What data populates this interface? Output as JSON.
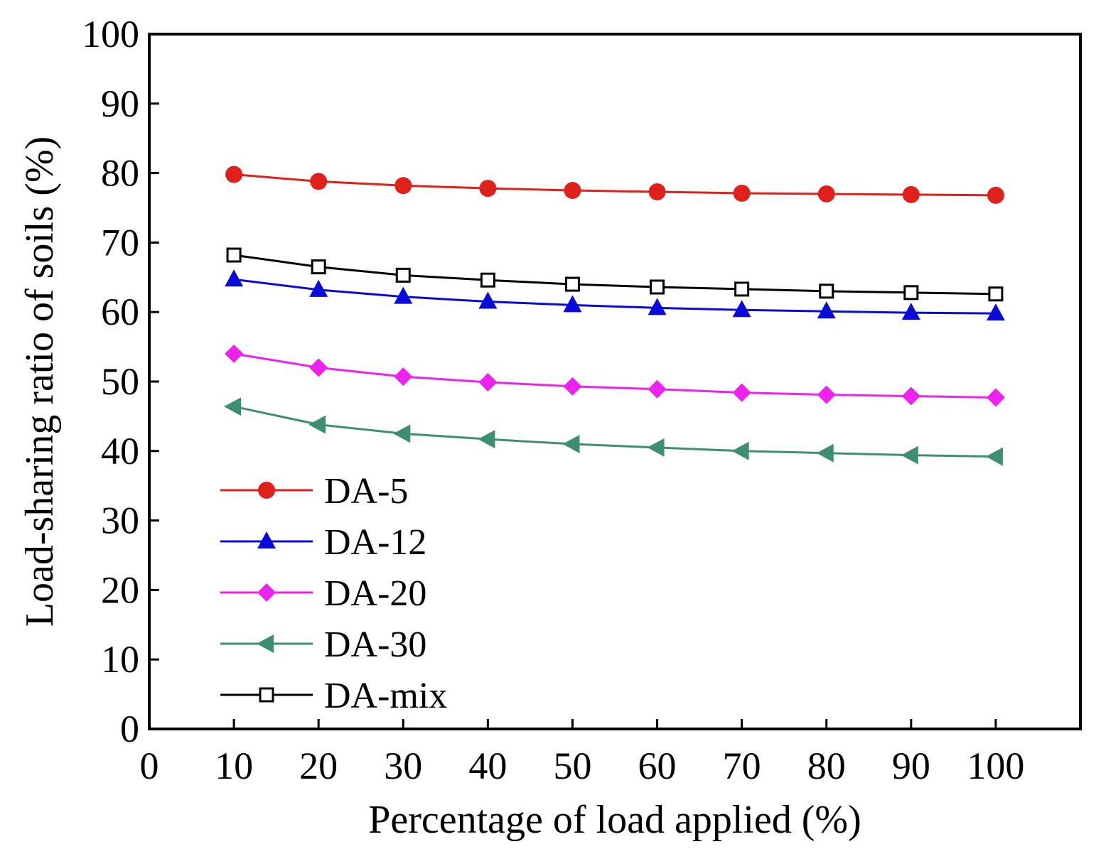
{
  "chart_data": {
    "type": "line",
    "xlabel": "Percentage of load applied (%)",
    "ylabel": "Load-sharing ratio of soils (%)",
    "xlim": [
      0,
      110
    ],
    "ylim": [
      0,
      100
    ],
    "x_ticks": [
      0,
      10,
      20,
      30,
      40,
      50,
      60,
      70,
      80,
      90,
      100
    ],
    "y_ticks": [
      0,
      10,
      20,
      30,
      40,
      50,
      60,
      70,
      80,
      90,
      100
    ],
    "grid": false,
    "legend_position": "bottom-left",
    "x": [
      10,
      20,
      30,
      40,
      50,
      60,
      70,
      80,
      90,
      100
    ],
    "series": [
      {
        "name": "DA-5",
        "color": "#e0201b",
        "marker": "circle",
        "values": [
          79.8,
          78.8,
          78.2,
          77.8,
          77.5,
          77.3,
          77.1,
          77.0,
          76.9,
          76.8
        ]
      },
      {
        "name": "DA-12",
        "color": "#0a0ad8",
        "marker": "triangle-up",
        "values": [
          64.7,
          63.2,
          62.2,
          61.5,
          61.0,
          60.6,
          60.3,
          60.1,
          59.9,
          59.8
        ]
      },
      {
        "name": "DA-20",
        "color": "#ee22ee",
        "marker": "diamond",
        "values": [
          54.0,
          52.0,
          50.7,
          49.9,
          49.3,
          48.9,
          48.4,
          48.1,
          47.9,
          47.7
        ]
      },
      {
        "name": "DA-30",
        "color": "#3e8e72",
        "marker": "triangle-left",
        "values": [
          46.4,
          43.8,
          42.5,
          41.7,
          41.0,
          40.5,
          40.0,
          39.7,
          39.4,
          39.2
        ]
      },
      {
        "name": "DA-mix",
        "color": "#000000",
        "marker": "square-open",
        "values": [
          68.2,
          66.5,
          65.3,
          64.6,
          64.0,
          63.6,
          63.3,
          63.0,
          62.8,
          62.6
        ]
      }
    ]
  }
}
